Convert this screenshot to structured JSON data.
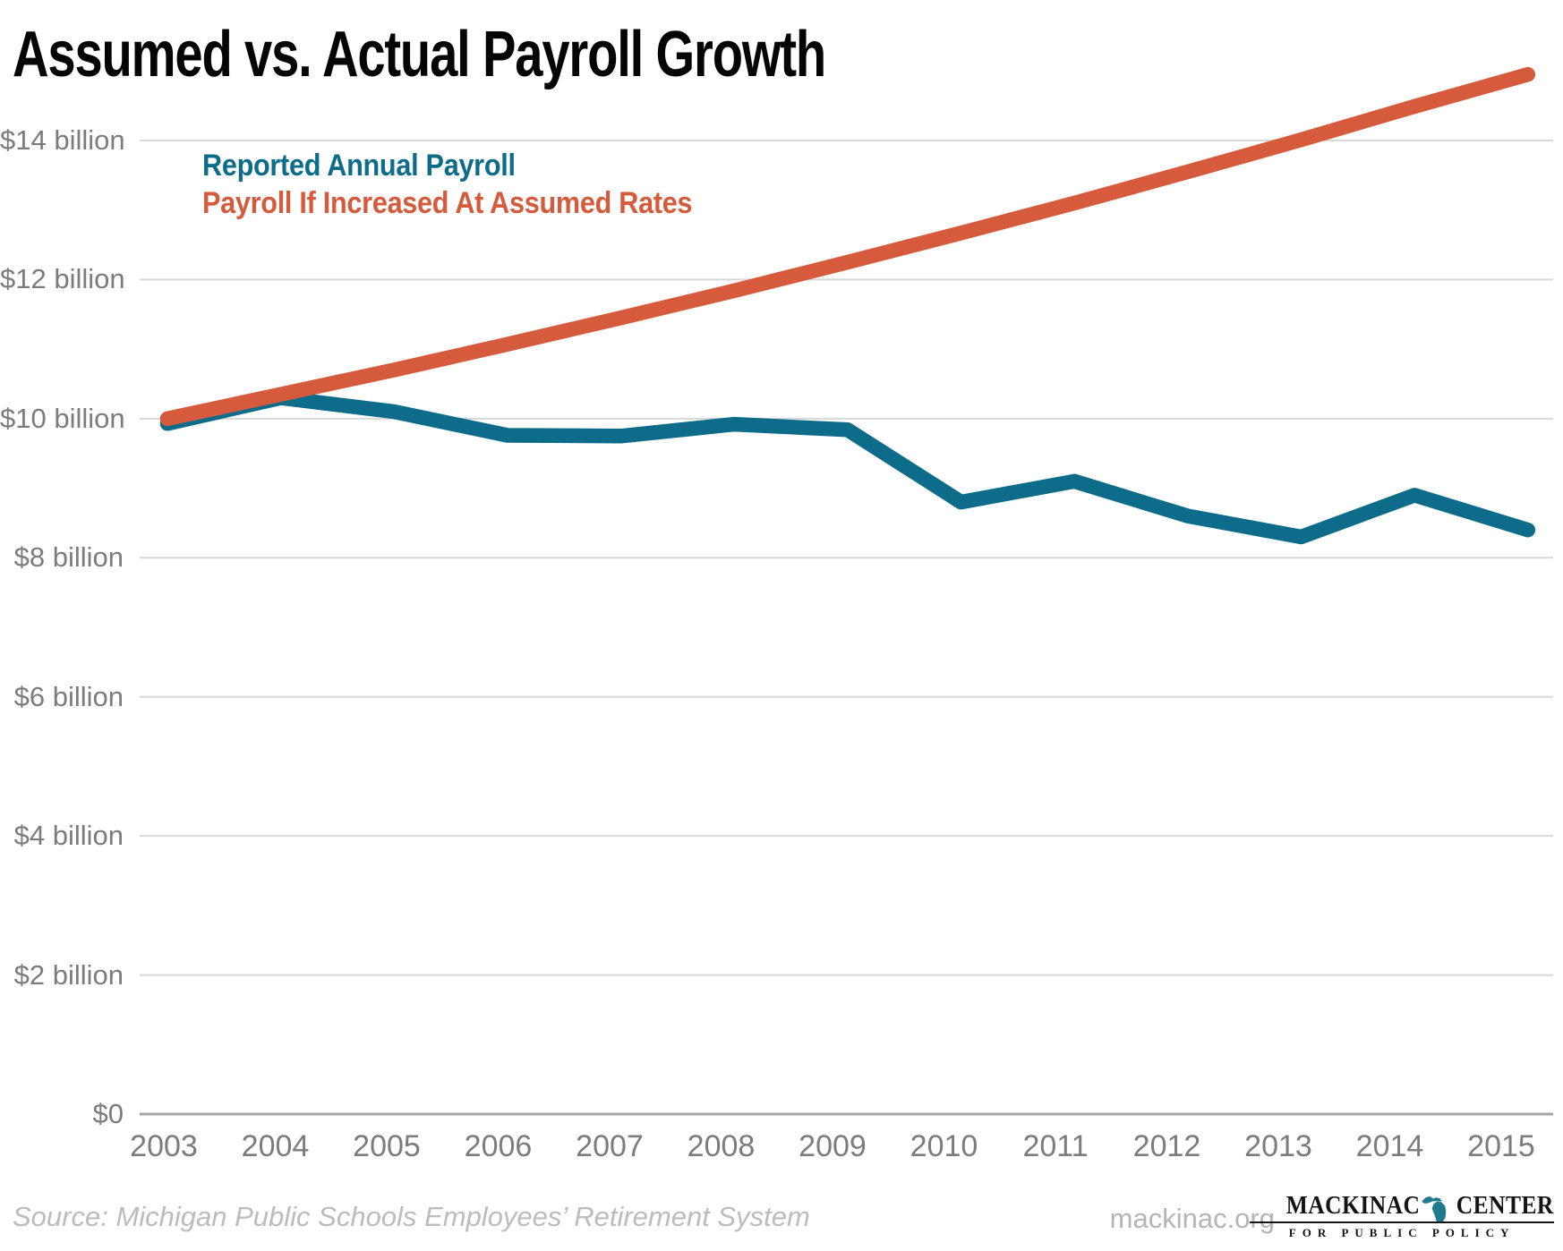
{
  "title": "Assumed vs. Actual Payroll Growth",
  "chart_data": {
    "type": "line",
    "x": [
      "2003",
      "2004",
      "2005",
      "2006",
      "2007",
      "2008",
      "2009",
      "2010",
      "2011",
      "2012",
      "2013",
      "2014",
      "2015"
    ],
    "series": [
      {
        "name": "Reported Annual Payroll",
        "color": "#0D6C8A",
        "values": [
          9.93,
          10.3,
          10.1,
          9.76,
          9.75,
          9.92,
          9.84,
          8.8,
          9.1,
          8.6,
          8.3,
          8.9,
          8.4
        ]
      },
      {
        "name": "Payroll If Increased At Assumed Rates",
        "color": "#D65A3C",
        "values": [
          10.0,
          10.35,
          10.7,
          11.07,
          11.45,
          11.84,
          12.25,
          12.67,
          13.1,
          13.55,
          14.01,
          14.49,
          14.95
        ]
      }
    ],
    "y_ticks": [
      {
        "value": 14,
        "label": "$14 billion"
      },
      {
        "value": 12,
        "label": "$12 billion"
      },
      {
        "value": 10,
        "label": "$10 billion"
      },
      {
        "value": 8,
        "label": "$8 billion"
      },
      {
        "value": 6,
        "label": "$6 billion"
      },
      {
        "value": 4,
        "label": "$4 billion"
      },
      {
        "value": 2,
        "label": "$2 billion"
      },
      {
        "value": 0,
        "label": "$0"
      }
    ],
    "ylim": [
      0,
      14
    ],
    "xlabel": "",
    "ylabel": "",
    "grid": true,
    "legend_position": "top-left-inside",
    "grid_color": "#d8d8d8",
    "zero_line_color": "#a6a6a6",
    "axis_text_color": "#7c7c7c"
  },
  "footer": {
    "source": "Source: Michigan Public Schools Employees’ Retirement System",
    "site": "mackinac.org",
    "logo": {
      "name_left": "MACKINAC",
      "name_right": "CENTER",
      "tagline": "FOR PUBLIC POLICY",
      "michigan_color": "#1E7A8C"
    }
  }
}
